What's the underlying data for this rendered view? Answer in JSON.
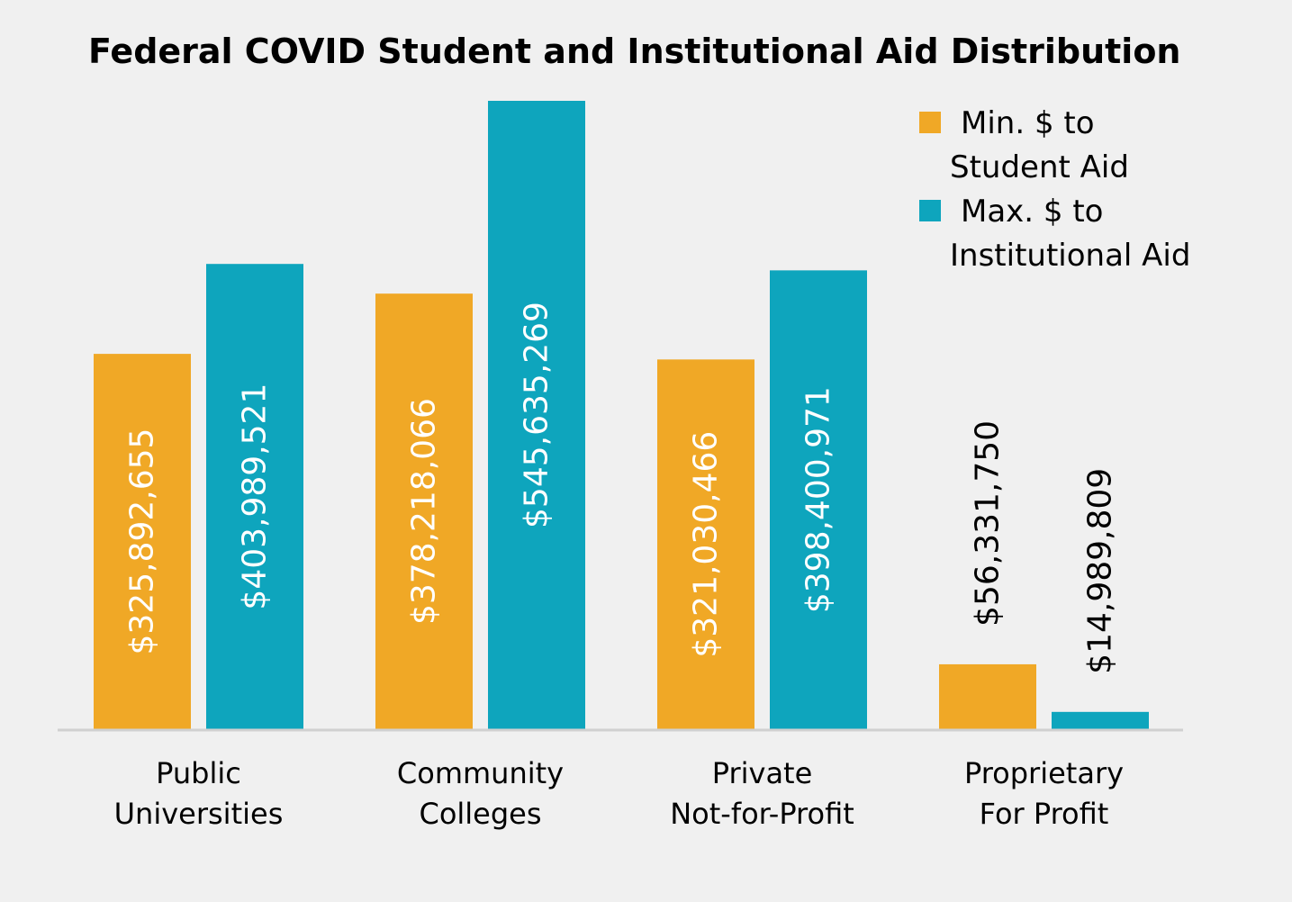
{
  "chart_data": {
    "type": "bar",
    "title": "Federal COVID Student and Institutional Aid Distribution",
    "categories": [
      [
        "Public",
        "Universities"
      ],
      [
        "Community",
        "Colleges"
      ],
      [
        "Private",
        "Not-for-Profit"
      ],
      [
        "Proprietary",
        "For Profit"
      ]
    ],
    "series": [
      {
        "name": [
          "Min. $ to",
          "Student Aid"
        ],
        "color": "#f0a826",
        "values": [
          325892655,
          378218066,
          321030466,
          56331750
        ],
        "labels": [
          "$325,892,655",
          "$378,218,066",
          "$321,030,466",
          "$56,331,750"
        ]
      },
      {
        "name": [
          "Max. $ to",
          "Institutional Aid"
        ],
        "color": "#0ea5bd",
        "values": [
          403989521,
          545635269,
          398400971,
          14989809
        ],
        "labels": [
          "$403,989,521",
          "$545,635,269",
          "$398,400,971",
          "$14,989,809"
        ]
      }
    ],
    "ylim": [
      0,
      545635269
    ],
    "grid": false,
    "legend": "top-right",
    "xlabel": "",
    "ylabel": ""
  }
}
